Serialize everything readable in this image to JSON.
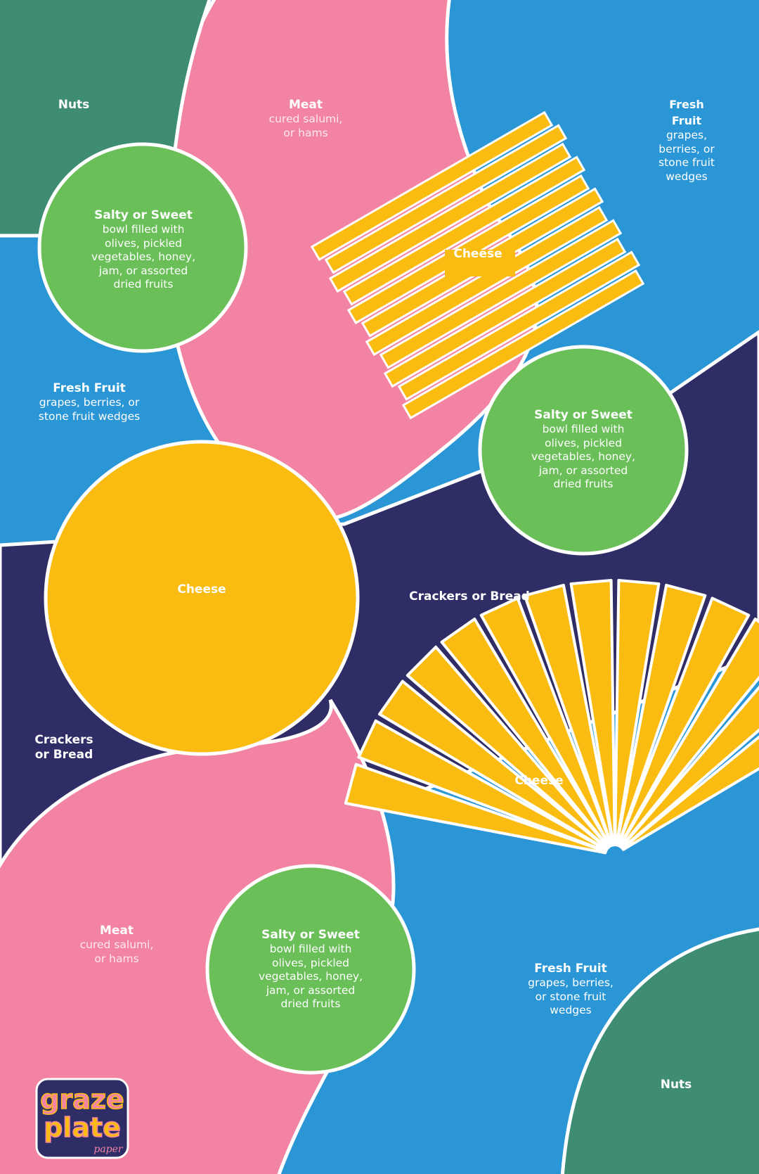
{
  "brand": {
    "logo_lines": [
      "graze",
      "plate",
      "paper"
    ],
    "colors": {
      "green_dark": "#3e8c73",
      "pink": "#f383a2",
      "blue": "#2b96d6",
      "navy": "#2e2d66",
      "yellow": "#fbbc12",
      "green_light": "#6abf59",
      "white": "#ffffff"
    }
  },
  "labels": {
    "nuts_top": {
      "title": "Nuts"
    },
    "meat_top": {
      "title": "Meat",
      "desc": [
        "cured salumi,",
        "or hams"
      ]
    },
    "fruit_top_right": {
      "title": [
        "Fresh",
        "Fruit"
      ],
      "desc": [
        "grapes,",
        "berries, or",
        "stone fruit",
        "wedges"
      ]
    },
    "salty_top_left": {
      "title": "Salty or Sweet",
      "desc": [
        "bowl filled with",
        "olives, pickled",
        "vegetables, honey,",
        "jam, or assorted",
        "dried fruits"
      ]
    },
    "cheese_rect": {
      "title": "Cheese"
    },
    "fruit_left": {
      "title": "Fresh Fruit",
      "desc": [
        "grapes, berries, or",
        "stone fruit wedges"
      ]
    },
    "salty_right": {
      "title": "Salty or Sweet",
      "desc": [
        "bowl filled with",
        "olives, pickled",
        "vegetables, honey,",
        "jam, or assorted",
        "dried fruits"
      ]
    },
    "cheese_circle": {
      "title": "Cheese"
    },
    "crackers_center": {
      "title": "Crackers or Bread"
    },
    "crackers_left": {
      "title": [
        "Crackers",
        "or Bread"
      ]
    },
    "cheese_fan": {
      "title": "Cheese"
    },
    "meat_bottom": {
      "title": "Meat",
      "desc": [
        "cured salumi,",
        "or hams"
      ]
    },
    "salty_bottom": {
      "title": "Salty or Sweet",
      "desc": [
        "bowl filled with",
        "olives, pickled",
        "vegetables, honey,",
        "jam, or assorted",
        "dried fruits"
      ]
    },
    "fruit_bottom": {
      "title": "Fresh Fruit",
      "desc": [
        "grapes, berries,",
        "or stone fruit",
        "wedges"
      ]
    },
    "nuts_bottom": {
      "title": "Nuts"
    }
  }
}
